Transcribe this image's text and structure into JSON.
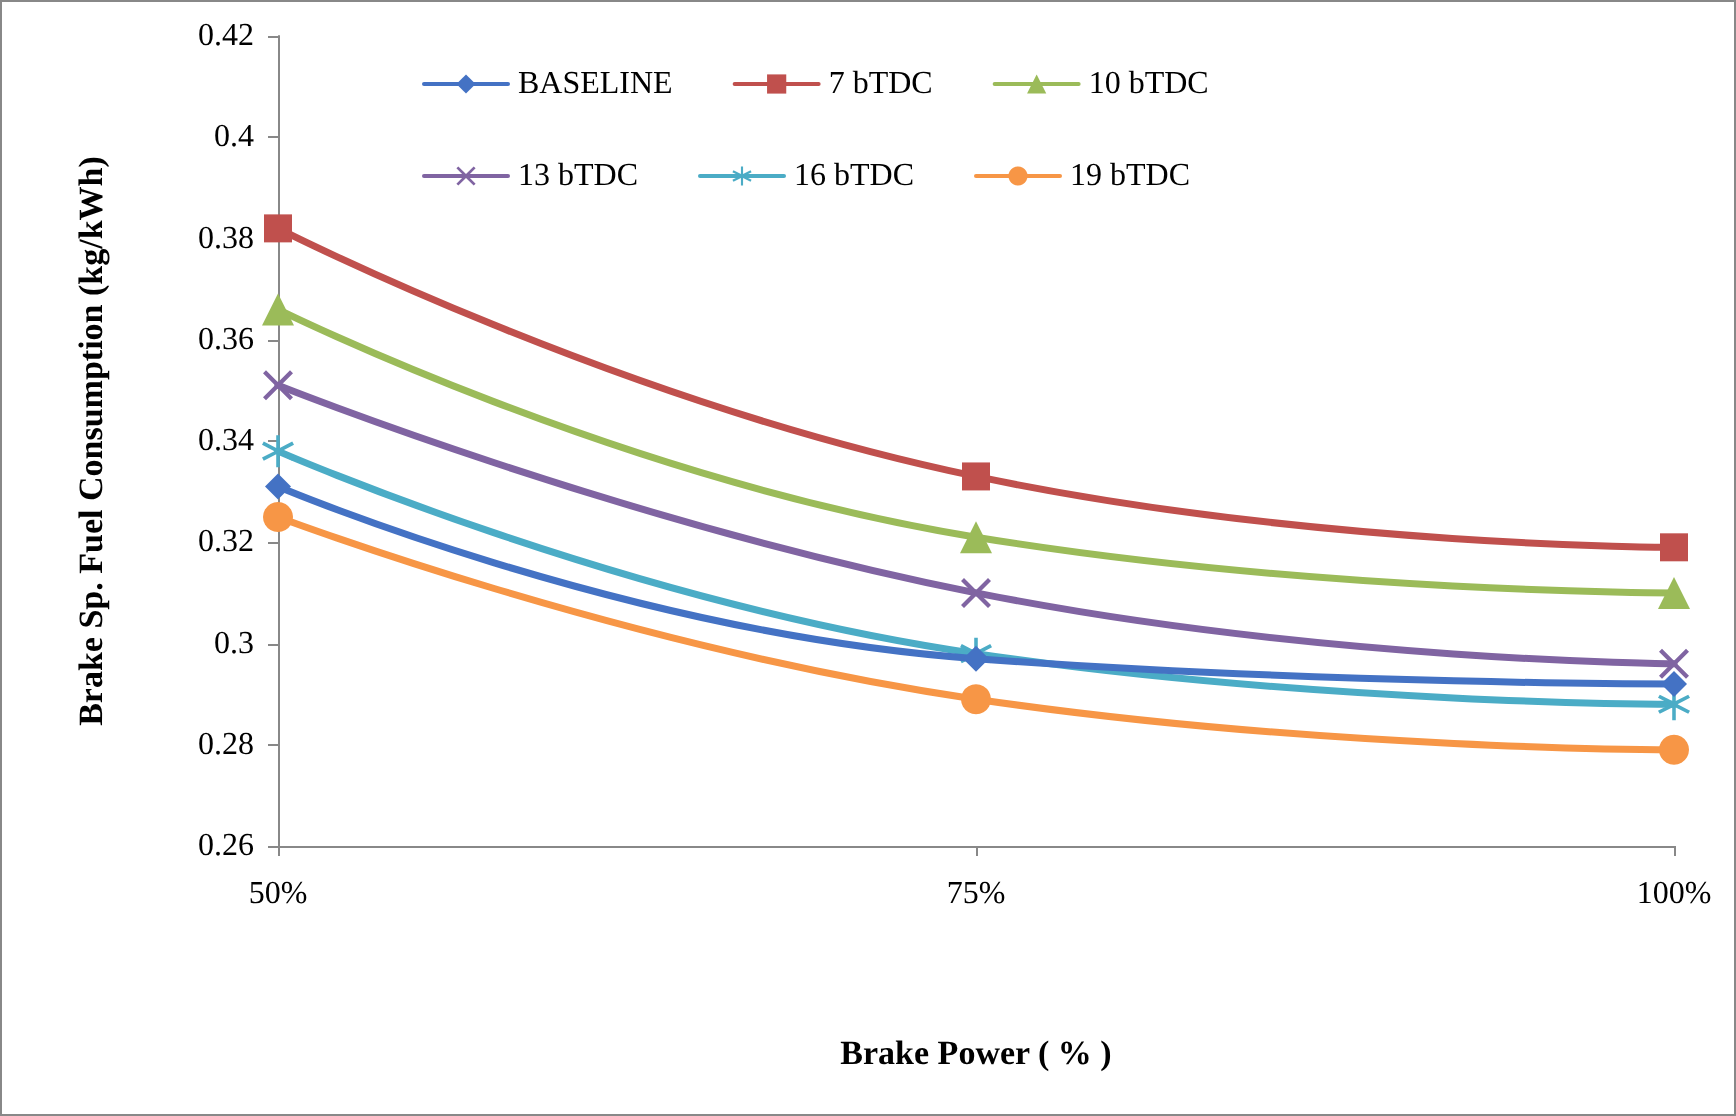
{
  "chart_data": {
    "type": "line",
    "xlabel": "Brake Power ( % )",
    "ylabel": "Brake Sp. Fuel Consumption (kg/kWh)",
    "categories": [
      "50%",
      "75%",
      "100%"
    ],
    "series": [
      {
        "name": "BASELINE",
        "color": "#4472c4",
        "marker": "diamond",
        "values": [
          0.331,
          0.297,
          0.292
        ]
      },
      {
        "name": "7 bTDC",
        "color": "#c0504d",
        "marker": "square",
        "values": [
          0.382,
          0.333,
          0.319
        ]
      },
      {
        "name": "10 bTDC",
        "color": "#9bbb59",
        "marker": "triangle",
        "values": [
          0.366,
          0.321,
          0.31
        ]
      },
      {
        "name": "13 bTDC",
        "color": "#8064a2",
        "marker": "cross",
        "values": [
          0.351,
          0.31,
          0.296
        ]
      },
      {
        "name": "16 bTDC",
        "color": "#4bacc6",
        "marker": "star",
        "values": [
          0.338,
          0.298,
          0.288
        ]
      },
      {
        "name": "19 bTDC",
        "color": "#f79646",
        "marker": "circle",
        "values": [
          0.325,
          0.289,
          0.279
        ]
      }
    ],
    "ylim": [
      0.26,
      0.42
    ],
    "yticks": [
      0.26,
      0.28,
      0.3,
      0.32,
      0.34,
      0.36,
      0.38,
      0.4,
      0.42
    ],
    "grid": false,
    "legend": "top",
    "line_style": "solid"
  }
}
